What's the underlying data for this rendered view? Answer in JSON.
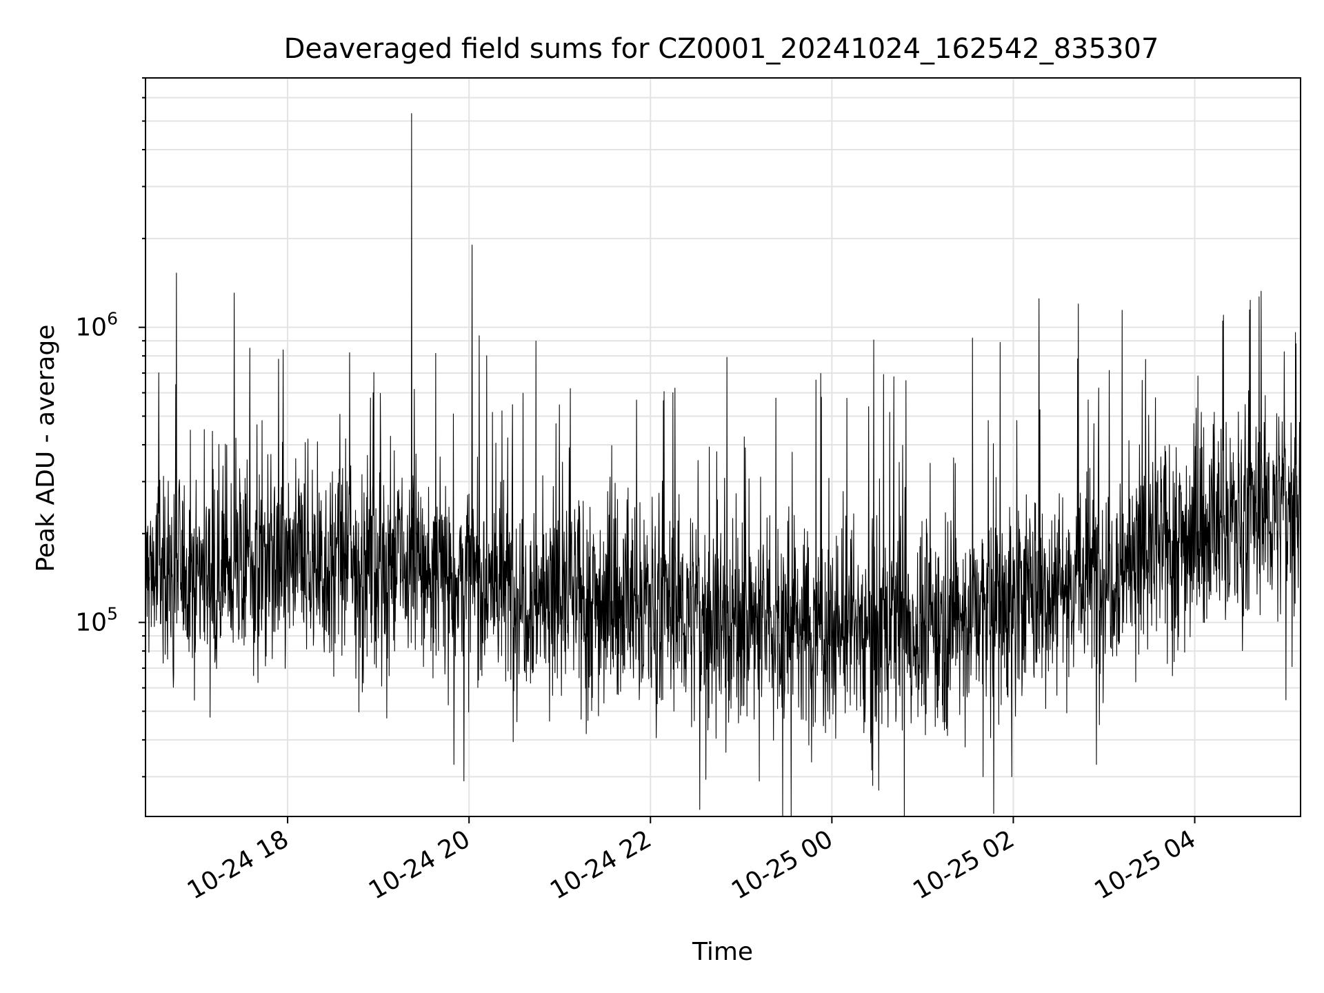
{
  "chart_data": {
    "type": "line",
    "title": "Deaveraged field sums for CZ0001_20241024_162542_835307",
    "xlabel": "Time",
    "ylabel": "Peak ADU - average",
    "x_scale": "time",
    "y_scale": "log",
    "xlim": [
      "2024-10-24 16:26",
      "2024-10-25 05:10"
    ],
    "ylim": [
      22000,
      7000000
    ],
    "x_ticks": [
      {
        "value": "2024-10-24 18:00",
        "label": "10-24 18"
      },
      {
        "value": "2024-10-24 20:00",
        "label": "10-24 20"
      },
      {
        "value": "2024-10-24 22:00",
        "label": "10-24 22"
      },
      {
        "value": "2024-10-25 00:00",
        "label": "10-25 00"
      },
      {
        "value": "2024-10-25 02:00",
        "label": "10-25 02"
      },
      {
        "value": "2024-10-25 04:00",
        "label": "10-25 04"
      }
    ],
    "y_ticks": [
      {
        "value": 100000,
        "base": "10",
        "exponent": "5"
      },
      {
        "value": 1000000,
        "base": "10",
        "exponent": "6"
      }
    ],
    "grid": true,
    "line_color": "#000000",
    "series": [
      {
        "baseline": [
          {
            "x": "2024-10-24 16:26",
            "y": 150000
          },
          {
            "x": "2024-10-24 18:00",
            "y": 155000
          },
          {
            "x": "2024-10-24 19:00",
            "y": 160000
          },
          {
            "x": "2024-10-24 20:00",
            "y": 140000
          },
          {
            "x": "2024-10-24 21:00",
            "y": 120000
          },
          {
            "x": "2024-10-24 22:00",
            "y": 115000
          },
          {
            "x": "2024-10-24 23:00",
            "y": 100000
          },
          {
            "x": "2024-10-25 00:00",
            "y": 95000
          },
          {
            "x": "2024-10-25 01:00",
            "y": 95000
          },
          {
            "x": "2024-10-25 02:00",
            "y": 120000
          },
          {
            "x": "2024-10-25 03:00",
            "y": 150000
          },
          {
            "x": "2024-10-25 04:00",
            "y": 200000
          },
          {
            "x": "2024-10-25 05:10",
            "y": 260000
          }
        ],
        "spikes": [
          {
            "x": "2024-10-24 19:22",
            "y": 5300000
          },
          {
            "x": "2024-10-24 20:02",
            "y": 1900000
          },
          {
            "x": "2024-10-25 02:17",
            "y": 1250000
          },
          {
            "x": "2024-10-25 02:43",
            "y": 1200000
          },
          {
            "x": "2024-10-25 04:19",
            "y": 1100000
          },
          {
            "x": "2024-10-25 01:33",
            "y": 920000
          },
          {
            "x": "2024-10-25 05:07",
            "y": 880000
          },
          {
            "x": "2024-10-24 17:35",
            "y": 850000
          },
          {
            "x": "2024-10-24 18:41",
            "y": 820000
          },
          {
            "x": "2024-10-24 17:54",
            "y": 780000
          },
          {
            "x": "2024-10-24 21:07",
            "y": 620000
          },
          {
            "x": "2024-10-25 00:41",
            "y": 680000
          },
          {
            "x": "2024-10-25 00:49",
            "y": 660000
          },
          {
            "x": "2024-10-24 16:46",
            "y": 640000
          }
        ],
        "dips": [
          {
            "x": "2024-10-24 19:50",
            "y": 33000
          },
          {
            "x": "2024-10-24 23:12",
            "y": 29000
          },
          {
            "x": "2024-10-25 00:31",
            "y": 27000
          },
          {
            "x": "2024-10-25 00:27",
            "y": 28000
          },
          {
            "x": "2024-10-25 01:40",
            "y": 30000
          },
          {
            "x": "2024-10-25 01:59",
            "y": 30000
          },
          {
            "x": "2024-10-25 02:55",
            "y": 33000
          }
        ]
      }
    ]
  }
}
